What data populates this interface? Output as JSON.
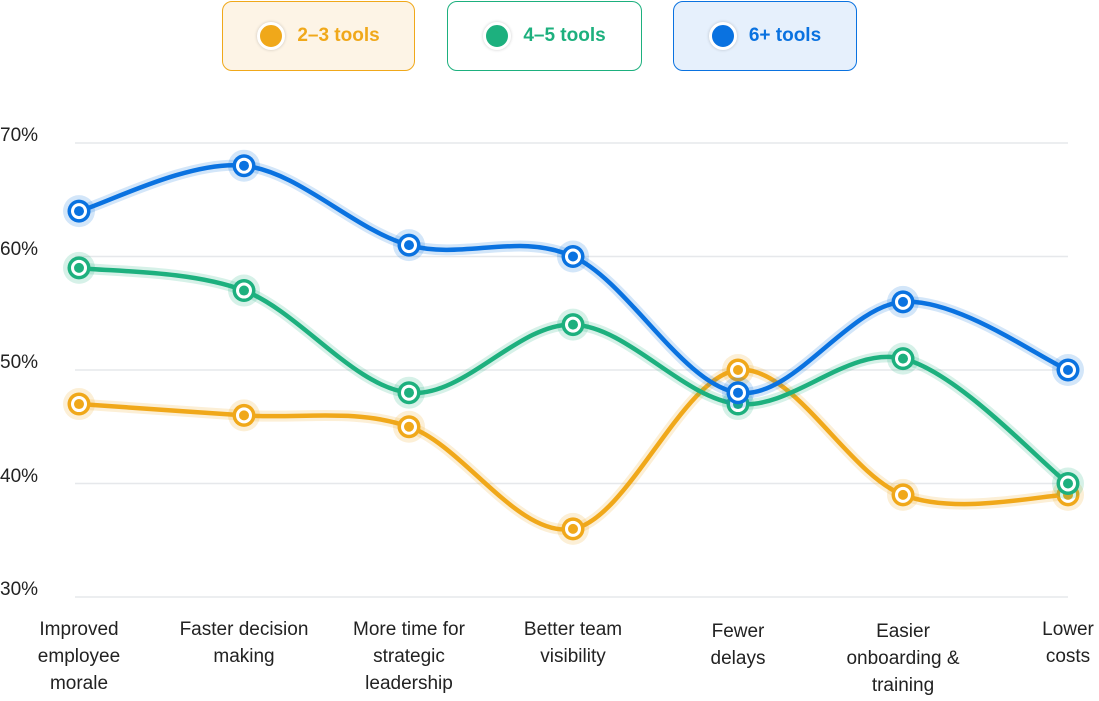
{
  "chart_data": {
    "type": "line",
    "categories": [
      "Improved\nemployee\nmorale",
      "Faster decision\nmaking",
      "More time for\nstrategic\nleadership",
      "Better team\nvisibility",
      "Fewer\ndelays",
      "Easier\nonboarding &\ntraining",
      "Lower\ncosts"
    ],
    "series": [
      {
        "name": "2–3 tools",
        "color": "#F0A81A",
        "bg": "#FDF4E6",
        "values": [
          47,
          46,
          45,
          36,
          50,
          39,
          39
        ]
      },
      {
        "name": "4–5 tools",
        "color": "#1DB07E",
        "bg": "#FFFFFF",
        "values": [
          59,
          57,
          48,
          54,
          47,
          51,
          40
        ]
      },
      {
        "name": "6+ tools",
        "color": "#0A72E0",
        "bg": "#E6F0FC",
        "values": [
          64,
          68,
          61,
          60,
          48,
          56,
          50
        ]
      }
    ],
    "yticks": [
      "30%",
      "40%",
      "50%",
      "60%",
      "70%"
    ],
    "ylim": [
      30,
      70
    ],
    "grid": true,
    "legend_position": "top",
    "title": "",
    "xlabel": "",
    "ylabel": ""
  }
}
